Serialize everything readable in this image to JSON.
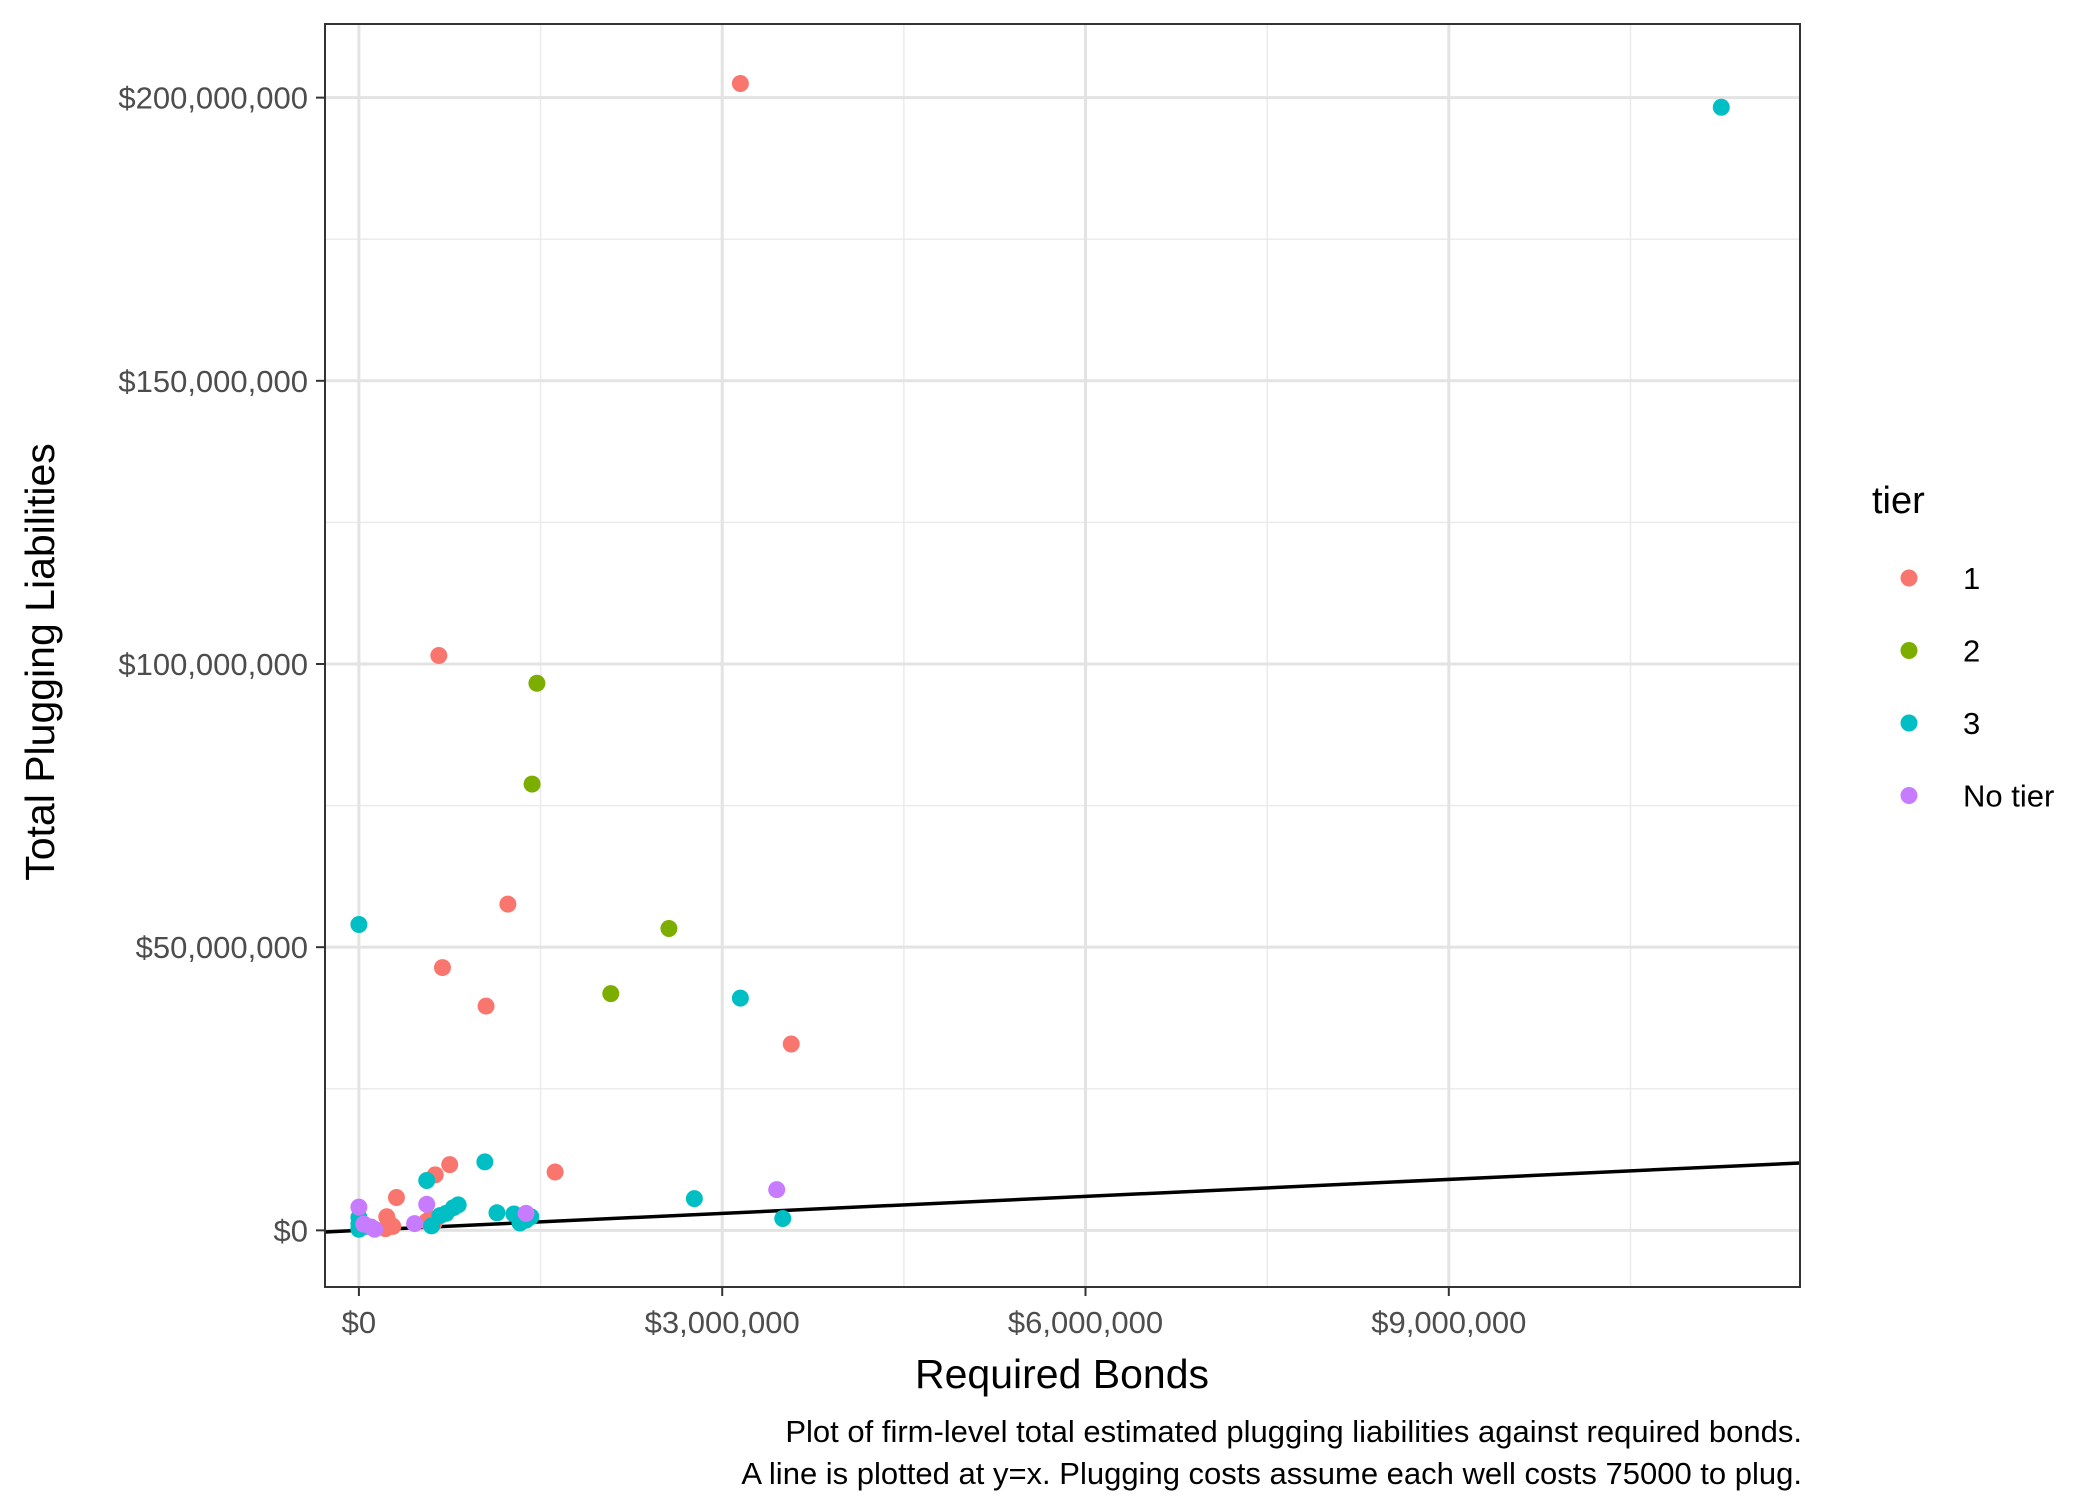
{
  "chart_data": {
    "type": "scatter",
    "xlabel": "Required Bonds",
    "ylabel": "Total Plugging Liabilities",
    "xlim": [
      -280000,
      11900000
    ],
    "ylim": [
      -10000000,
      213000000
    ],
    "x_ticks": [
      0,
      3000000,
      6000000,
      9000000
    ],
    "x_tick_labels": [
      "$0",
      "$3,000,000",
      "$6,000,000",
      "$9,000,000"
    ],
    "y_ticks": [
      0,
      50000000,
      100000000,
      150000000,
      200000000
    ],
    "y_tick_labels": [
      "$0",
      "$50,000,000",
      "$100,000,000",
      "$150,000,000",
      "$200,000,000"
    ],
    "grid": true,
    "legend": {
      "title": "tier",
      "position": "right"
    },
    "reference_line": {
      "slope": 1,
      "intercept": 0,
      "color": "#000000"
    },
    "caption": [
      "Plot of firm-level total estimated plugging liabilities against required bonds.",
      "A line is plotted at y=x. Plugging costs assume each well costs 75000 to plug."
    ],
    "series": [
      {
        "name": "1",
        "color": "#F8766D",
        "points": [
          [
            3150000,
            202500000
          ],
          [
            660000,
            101500000
          ],
          [
            1230000,
            57600000
          ],
          [
            690000,
            46400000
          ],
          [
            1050000,
            39600000
          ],
          [
            3570000,
            32900000
          ],
          [
            1620000,
            10300000
          ],
          [
            750000,
            11600000
          ],
          [
            630000,
            9800000
          ],
          [
            310000,
            5800000
          ],
          [
            230000,
            2400000
          ],
          [
            250000,
            1300000
          ],
          [
            280000,
            700000
          ],
          [
            220000,
            300000
          ],
          [
            590000,
            2100000
          ],
          [
            560000,
            1600000
          ],
          [
            620000,
            1300000
          ]
        ]
      },
      {
        "name": "2",
        "color": "#7CAE00",
        "points": [
          [
            1470000,
            96600000
          ],
          [
            1430000,
            78800000
          ],
          [
            2560000,
            53300000
          ],
          [
            2080000,
            41800000
          ]
        ]
      },
      {
        "name": "3",
        "color": "#00BFC4",
        "points": [
          [
            11250000,
            198300000
          ],
          [
            0,
            54000000
          ],
          [
            3150000,
            41000000
          ],
          [
            1040000,
            12100000
          ],
          [
            2770000,
            5600000
          ],
          [
            3500000,
            2100000
          ],
          [
            560000,
            8800000
          ],
          [
            820000,
            4500000
          ],
          [
            780000,
            4000000
          ],
          [
            720000,
            3000000
          ],
          [
            670000,
            2600000
          ],
          [
            1140000,
            3100000
          ],
          [
            1280000,
            2900000
          ],
          [
            1330000,
            1300000
          ],
          [
            1380000,
            1800000
          ],
          [
            1420000,
            2400000
          ],
          [
            600000,
            800000
          ],
          [
            0,
            2300000
          ],
          [
            0,
            1200000
          ],
          [
            0,
            400000
          ],
          [
            60000,
            700000
          ],
          [
            0,
            200000
          ]
        ]
      },
      {
        "name": "No tier",
        "color": "#C77CFF",
        "points": [
          [
            3450000,
            7200000
          ],
          [
            0,
            4100000
          ],
          [
            560000,
            4600000
          ],
          [
            1380000,
            3000000
          ],
          [
            460000,
            1200000
          ],
          [
            100000,
            600000
          ],
          [
            130000,
            200000
          ],
          [
            40000,
            1100000
          ]
        ]
      }
    ]
  }
}
